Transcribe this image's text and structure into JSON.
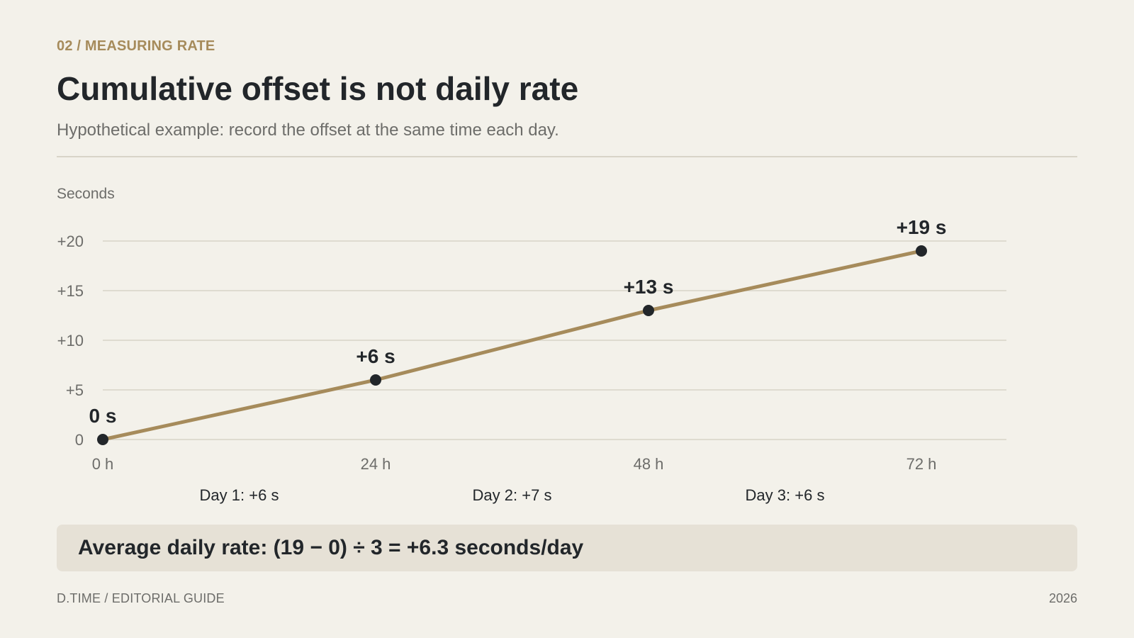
{
  "header": {
    "eyebrow": "02 / MEASURING RATE",
    "title": "Cumulative offset is not daily rate",
    "subtitle": "Hypothetical example: record the offset at the same time each day."
  },
  "chart_data": {
    "type": "line",
    "ylabel": "Seconds",
    "xlabel": "",
    "x": [
      0,
      24,
      48,
      72
    ],
    "x_tick_labels": [
      "0 h",
      "24 h",
      "48 h",
      "72 h"
    ],
    "y_ticks": [
      0,
      5,
      10,
      15,
      20
    ],
    "y_tick_labels": [
      "0",
      "+5",
      "+10",
      "+15",
      "+20"
    ],
    "ylim": [
      0,
      20
    ],
    "xlim": [
      0,
      72
    ],
    "grid": true,
    "series": [
      {
        "values": [
          0,
          6,
          13,
          19
        ],
        "data_labels": [
          "0 s",
          "+6 s",
          "+13 s",
          "+19 s"
        ]
      }
    ],
    "annotations": [
      "Day 1: +6 s",
      "Day 2: +7 s",
      "Day 3: +6 s"
    ],
    "colors": {
      "line": "#a68b5b",
      "point": "#22262a",
      "grid": "#d8d4c8"
    }
  },
  "summary": {
    "text": "Average daily rate: (19 − 0) ÷ 3 = +6.3 seconds/day"
  },
  "footer": {
    "left": "D.TIME / EDITORIAL GUIDE",
    "right": "2026"
  }
}
